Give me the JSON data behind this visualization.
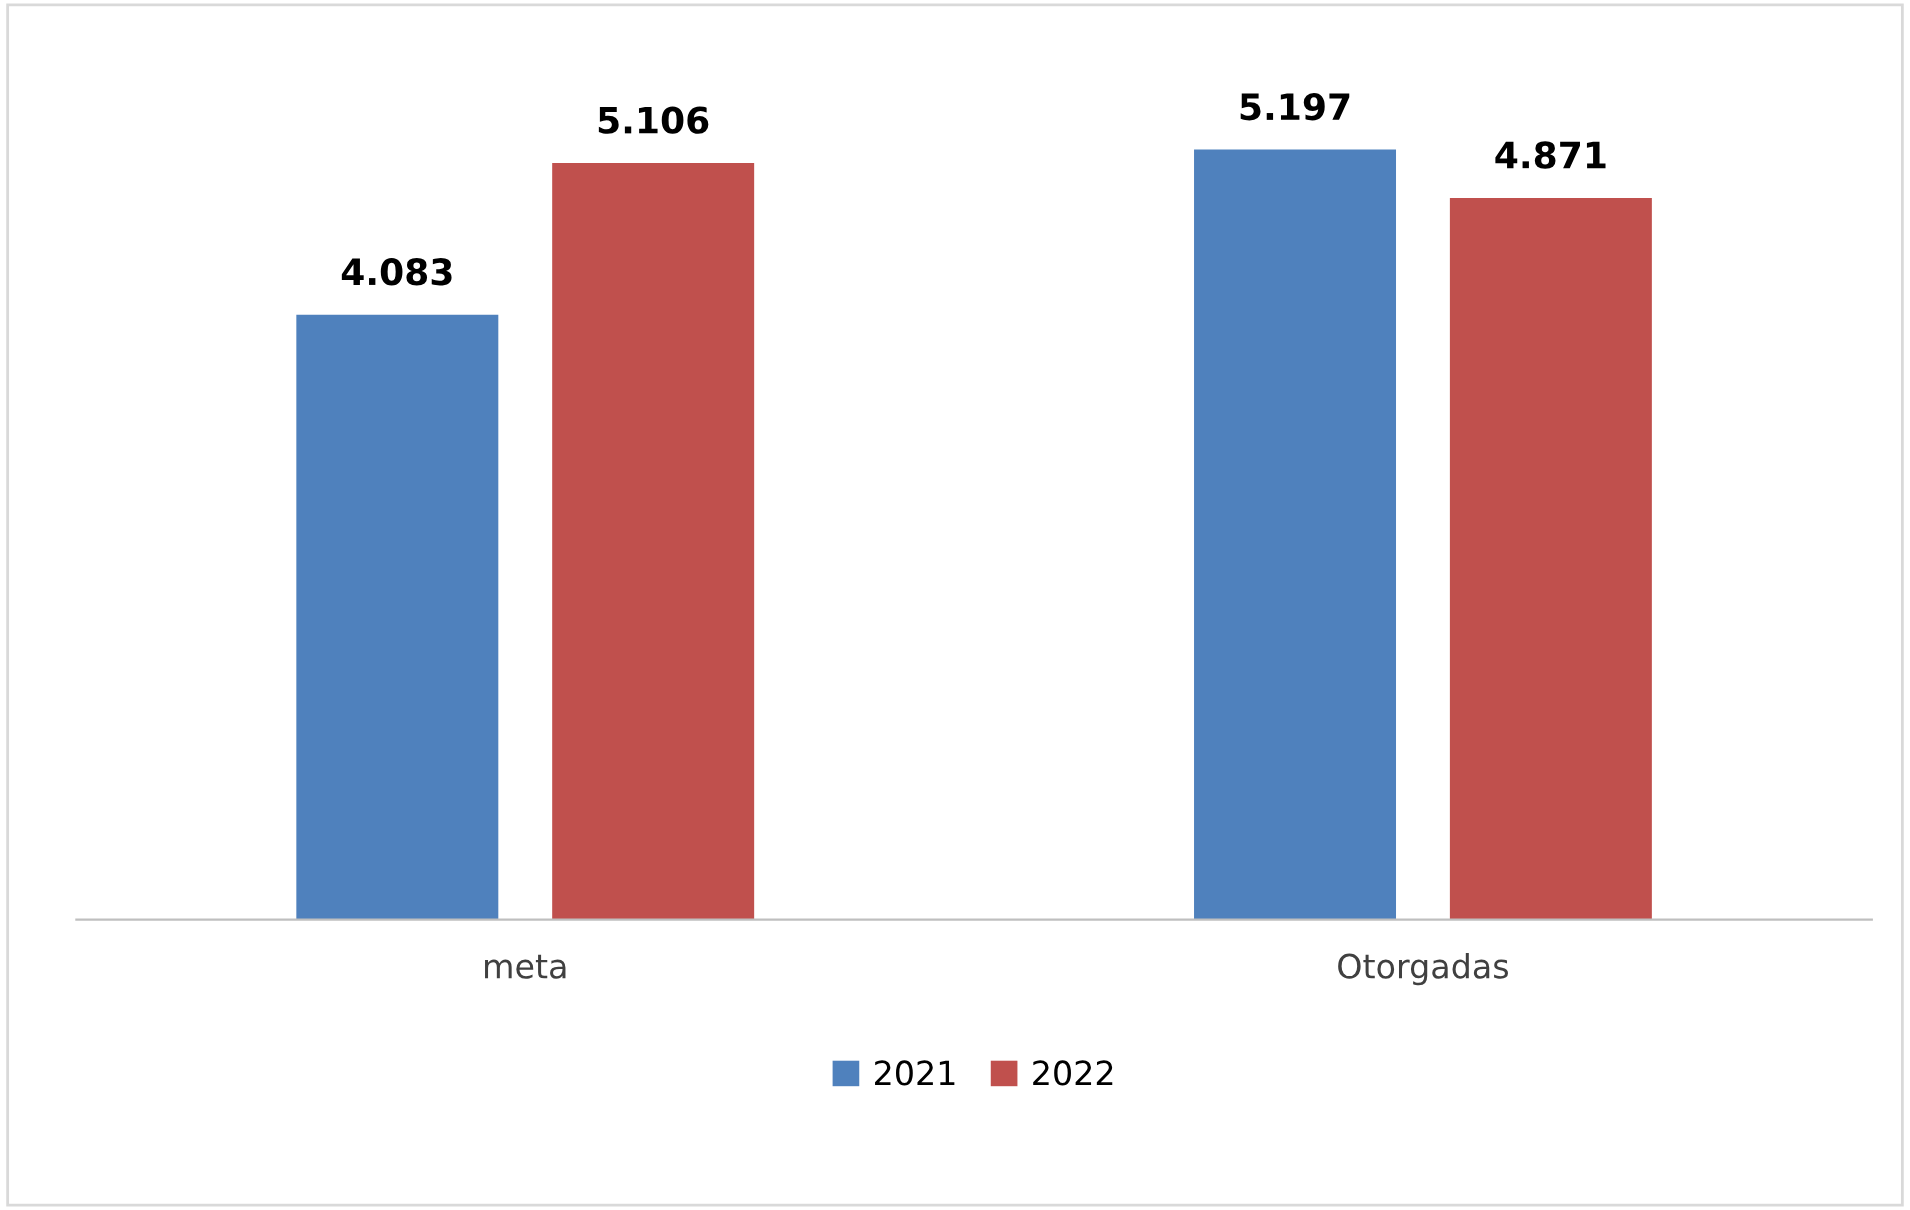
{
  "chart_data": {
    "type": "bar",
    "categories": [
      "meta",
      "Otorgadas"
    ],
    "series": [
      {
        "name": "2021",
        "color": "#4f81bd",
        "values": [
          4.083,
          5.197
        ]
      },
      {
        "name": "2022",
        "color": "#c0504d",
        "values": [
          5.106,
          4.871
        ]
      }
    ],
    "data_labels": true,
    "legend": "bottom",
    "grid": false,
    "tick_labels": "x"
  }
}
